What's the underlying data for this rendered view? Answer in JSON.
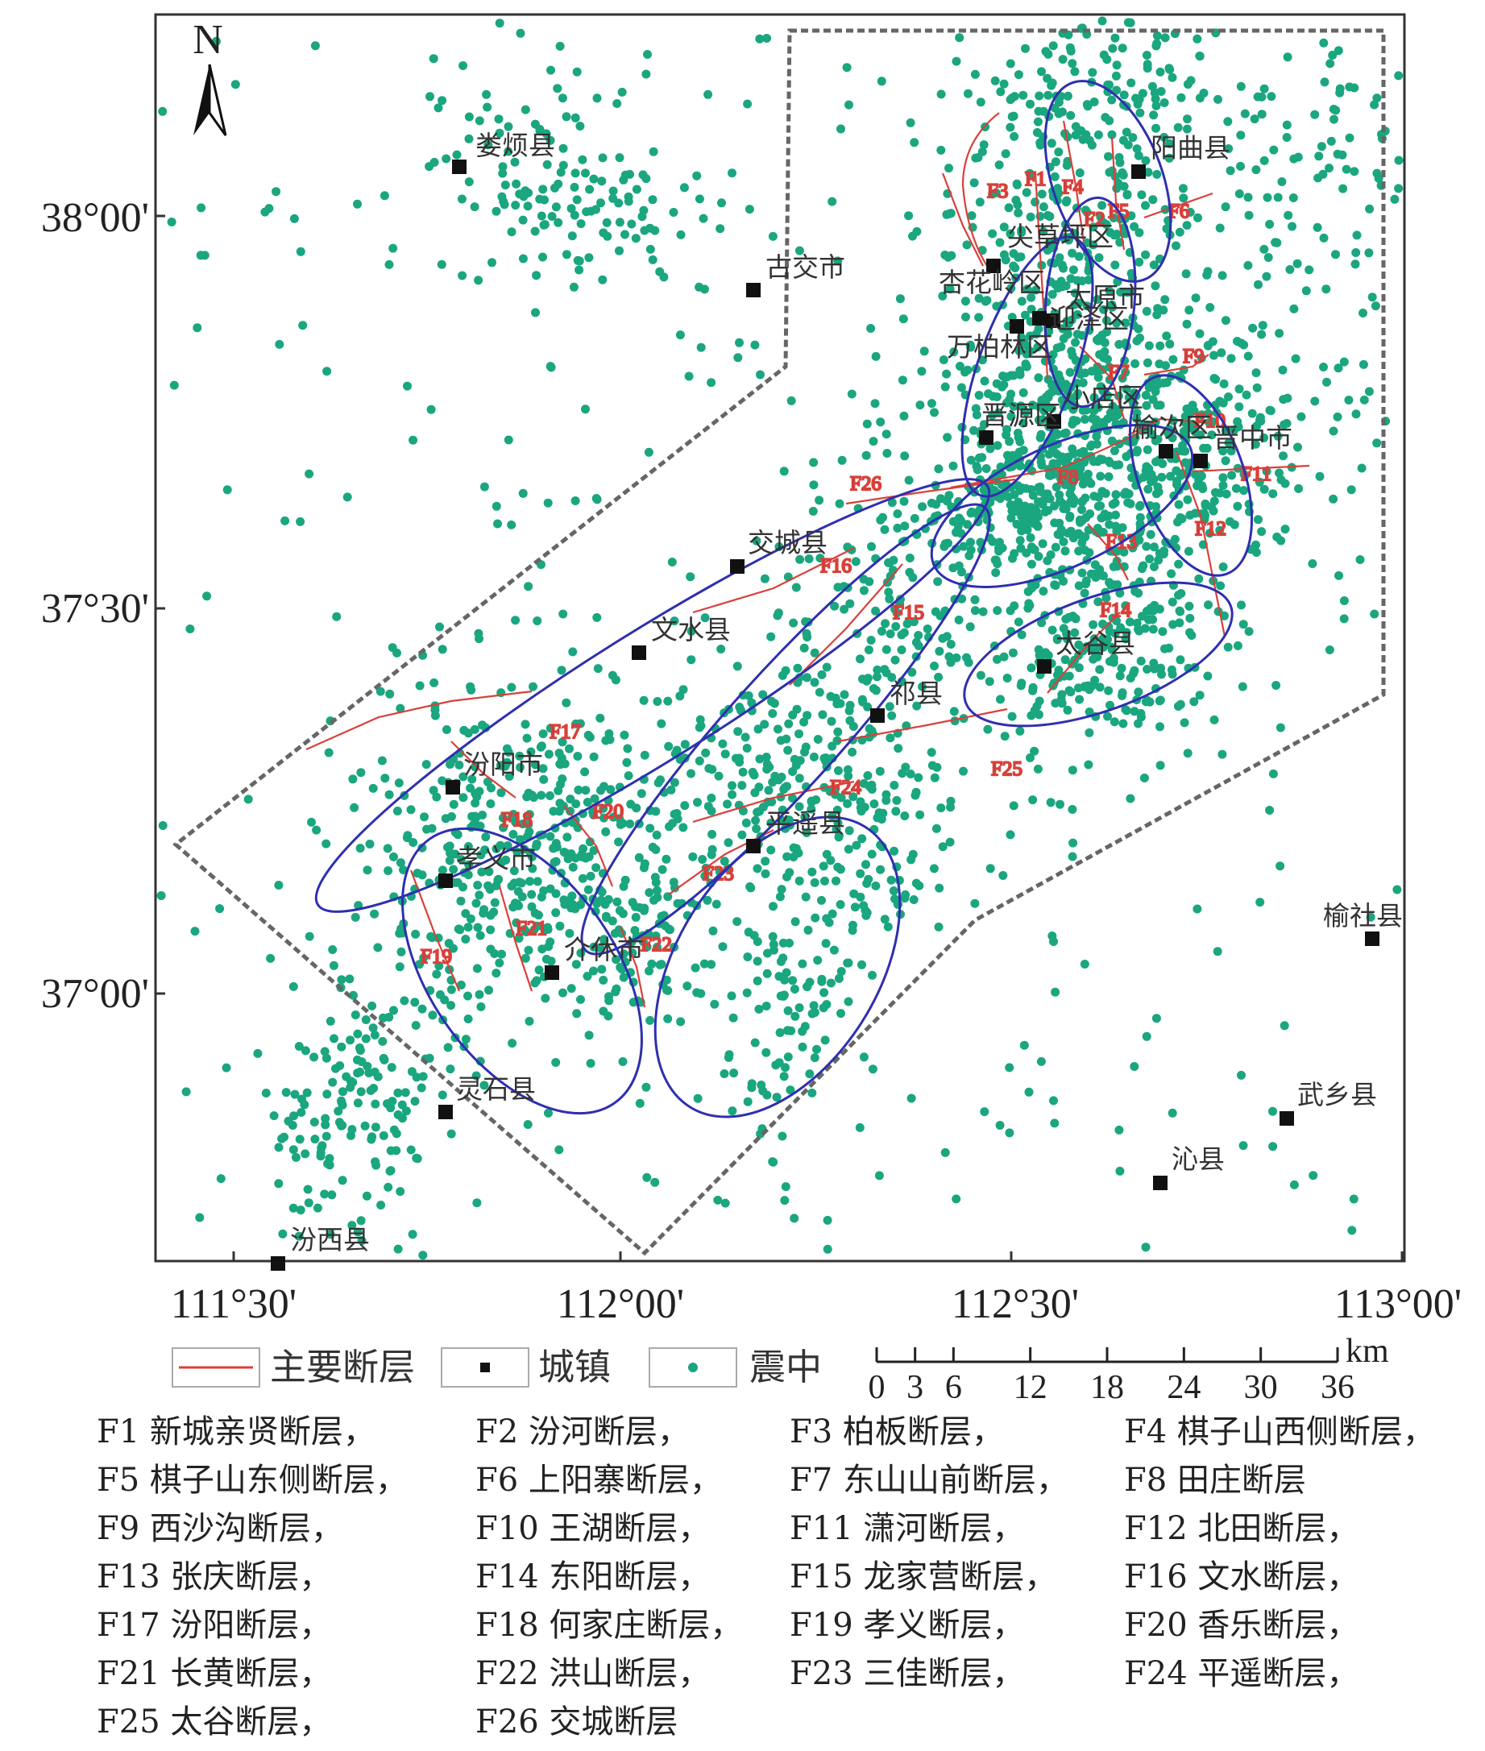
{
  "map": {
    "north_label": "N",
    "lat_ticks": [
      "38°00'",
      "37°30'",
      "37°00'"
    ],
    "lon_ticks": [
      "111°30'",
      "112°00'",
      "112°30'",
      "113°00'"
    ],
    "epicenter_color": "#1aa67f",
    "fault_color": "#d9403a",
    "zone_color": "#2f2fb0",
    "boundary_color": "#666666"
  },
  "cities": [
    {
      "name": "娄烦县"
    },
    {
      "name": "阳曲县"
    },
    {
      "name": "古交市"
    },
    {
      "name": "太原市"
    },
    {
      "name": "尖草坪区"
    },
    {
      "name": "杏花岭区"
    },
    {
      "name": "迎泽区"
    },
    {
      "name": "万柏林区"
    },
    {
      "name": "小店区"
    },
    {
      "name": "晋源区"
    },
    {
      "name": "榆次区"
    },
    {
      "name": "晋中市"
    },
    {
      "name": "交城县"
    },
    {
      "name": "文水县"
    },
    {
      "name": "太谷县"
    },
    {
      "name": "祁县"
    },
    {
      "name": "汾阳市"
    },
    {
      "name": "平遥县"
    },
    {
      "name": "孝义市"
    },
    {
      "name": "介休市"
    },
    {
      "name": "灵石县"
    },
    {
      "name": "汾西县"
    },
    {
      "name": "榆社县"
    },
    {
      "name": "武乡县"
    },
    {
      "name": "沁县"
    }
  ],
  "fault_labels": [
    "F1",
    "F2",
    "F3",
    "F4",
    "F5",
    "F6",
    "F7",
    "F8",
    "F9",
    "F10",
    "F11",
    "F12",
    "F13",
    "F14",
    "F15",
    "F16",
    "F17",
    "F18",
    "F19",
    "F20",
    "F21",
    "F22",
    "F23",
    "F24",
    "F25",
    "F26"
  ],
  "legend": {
    "fault": "主要断层",
    "town": "城镇",
    "epicenter": "震中"
  },
  "scale": {
    "unit": "km",
    "ticks": [
      "0",
      "3",
      "6",
      "12",
      "18",
      "24",
      "30",
      "36"
    ]
  },
  "fault_list": [
    "F1 新城亲贤断层，",
    "F2 汾河断层，",
    "F3 柏板断层，",
    "F4 棋子山西侧断层，",
    "F5 棋子山东侧断层，",
    "F6 上阳寨断层，",
    "F7 东山山前断层，",
    "F8 田庄断层",
    "F9 西沙沟断层，",
    "F10 王湖断层，",
    "F11 潇河断层，",
    "F12 北田断层，",
    "F13 张庆断层，",
    "F14 东阳断层，",
    "F15 龙家营断层，",
    "F16 文水断层，",
    "F17 汾阳断层，",
    "F18 何家庄断层，",
    "F19 孝义断层，",
    "F20 香乐断层，",
    "F21 长黄断层，",
    "F22 洪山断层，",
    "F23 三佳断层，",
    "F24 平遥断层，",
    "F25 太谷断层，",
    "F26 交城断层"
  ]
}
